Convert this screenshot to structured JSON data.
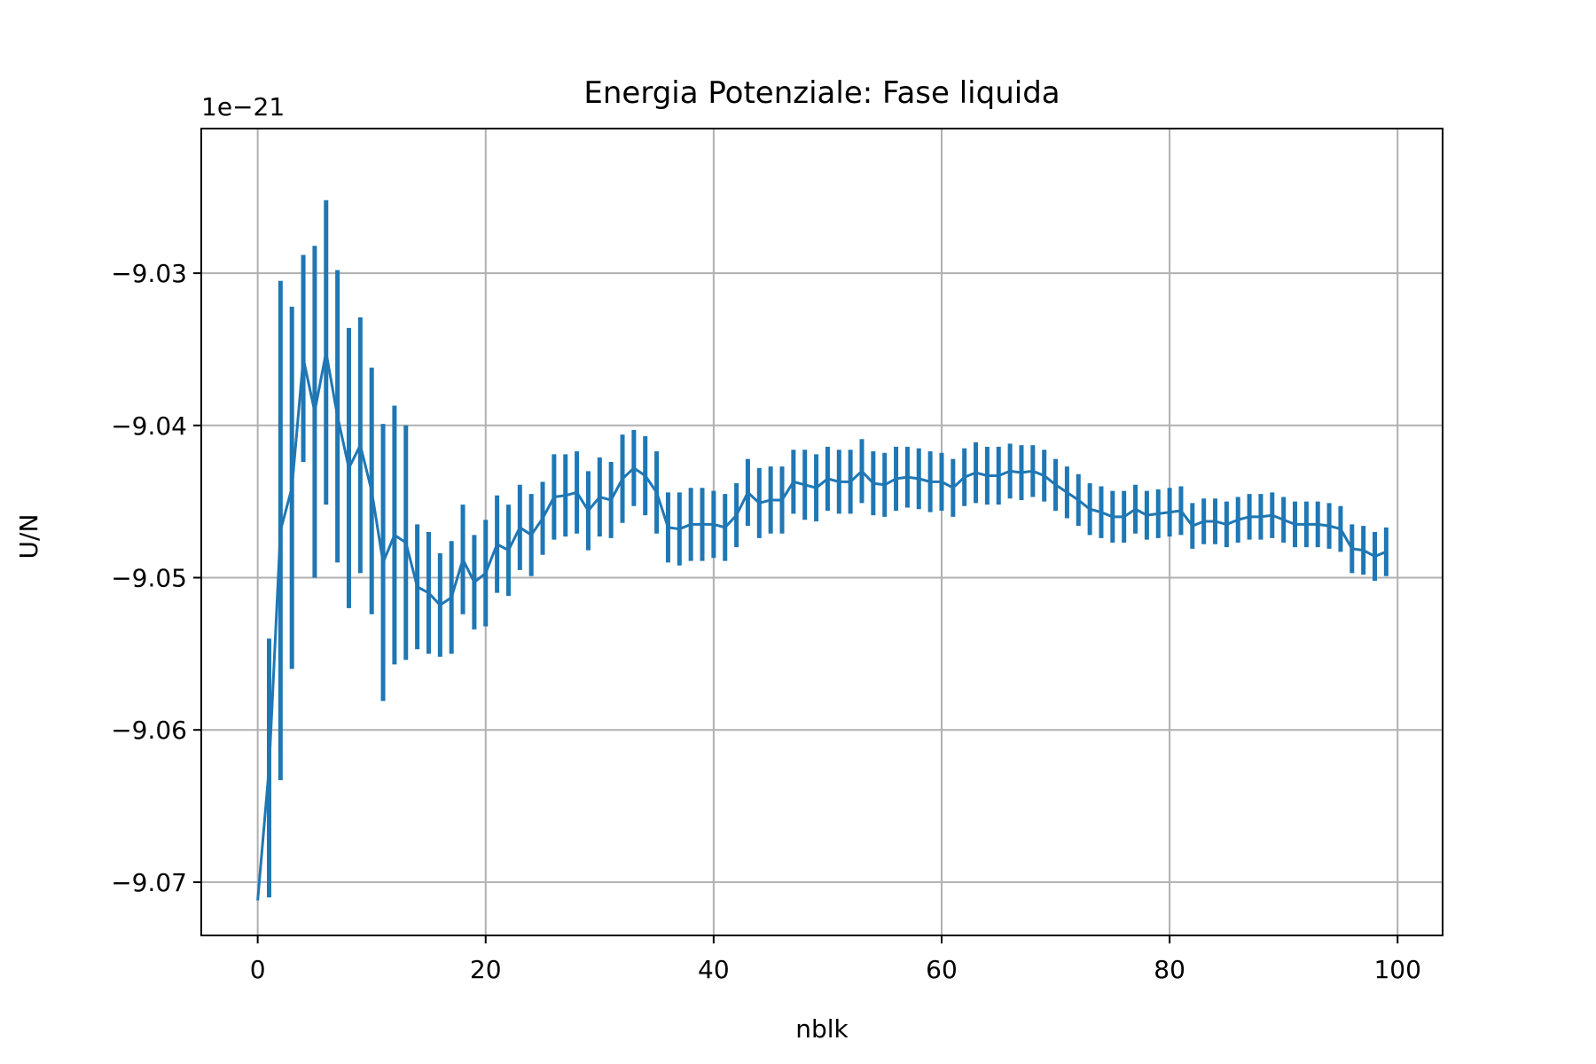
{
  "chart_data": {
    "type": "line",
    "title": "Energia Potenziale: Fase liquida",
    "xlabel": "nblk",
    "ylabel": "U/N",
    "y_offset_label": "1e−21",
    "xlim": [
      -4.95,
      103.95
    ],
    "ylim": [
      -9.0735,
      -9.0205
    ],
    "x_ticks": [
      0,
      20,
      40,
      60,
      80,
      100
    ],
    "x_tick_labels": [
      "0",
      "20",
      "40",
      "60",
      "80",
      "100"
    ],
    "y_ticks": [
      -9.07,
      -9.06,
      -9.05,
      -9.04,
      -9.03
    ],
    "y_tick_labels": [
      "−9.07",
      "−9.06",
      "−9.05",
      "−9.04",
      "−9.03"
    ],
    "grid": true,
    "color": "#1f77b4",
    "series": [
      {
        "x": [
          0,
          1,
          2,
          3,
          4,
          5,
          6,
          7,
          8,
          9,
          10,
          11,
          12,
          13,
          14,
          15,
          16,
          17,
          18,
          19,
          20,
          21,
          22,
          23,
          24,
          25,
          26,
          27,
          28,
          29,
          30,
          31,
          32,
          33,
          34,
          35,
          36,
          37,
          38,
          39,
          40,
          41,
          42,
          43,
          44,
          45,
          46,
          47,
          48,
          49,
          50,
          51,
          52,
          53,
          54,
          55,
          56,
          57,
          58,
          59,
          60,
          61,
          62,
          63,
          64,
          65,
          66,
          67,
          68,
          69,
          70,
          71,
          72,
          73,
          74,
          75,
          76,
          77,
          78,
          79,
          80,
          81,
          82,
          83,
          84,
          85,
          86,
          87,
          88,
          89,
          90,
          91,
          92,
          93,
          94,
          95,
          96,
          97,
          98,
          99
        ],
        "y": [
          -9.0712,
          -9.0625,
          -9.0469,
          -9.0441,
          -9.0356,
          -9.0391,
          -9.0352,
          -9.0394,
          -9.0428,
          -9.0413,
          -9.0443,
          -9.049,
          -9.0472,
          -9.0477,
          -9.0506,
          -9.051,
          -9.0518,
          -9.0513,
          -9.0488,
          -9.0503,
          -9.0497,
          -9.0478,
          -9.0482,
          -9.0467,
          -9.0472,
          -9.0461,
          -9.0447,
          -9.0446,
          -9.0444,
          -9.0456,
          -9.0447,
          -9.0449,
          -9.0435,
          -9.0428,
          -9.0433,
          -9.0444,
          -9.0467,
          -9.0468,
          -9.0465,
          -9.0465,
          -9.0465,
          -9.0467,
          -9.0459,
          -9.0444,
          -9.0451,
          -9.0449,
          -9.0449,
          -9.0437,
          -9.0439,
          -9.0441,
          -9.0435,
          -9.0437,
          -9.0437,
          -9.043,
          -9.0438,
          -9.0439,
          -9.0435,
          -9.0434,
          -9.0435,
          -9.0437,
          -9.0437,
          -9.0441,
          -9.0434,
          -9.0431,
          -9.0433,
          -9.0433,
          -9.043,
          -9.0431,
          -9.043,
          -9.0433,
          -9.0439,
          -9.0444,
          -9.0449,
          -9.0455,
          -9.0457,
          -9.046,
          -9.046,
          -9.0455,
          -9.0459,
          -9.0458,
          -9.0457,
          -9.0456,
          -9.0466,
          -9.0463,
          -9.0463,
          -9.0465,
          -9.0462,
          -9.046,
          -9.046,
          -9.0459,
          -9.0462,
          -9.0465,
          -9.0465,
          -9.0465,
          -9.0466,
          -9.0468,
          -9.0481,
          -9.0482,
          -9.0486,
          -9.0483
        ],
        "yerr": [
          0,
          0.0085,
          0.0164,
          0.0119,
          0.0068,
          0.0109,
          0.01,
          0.0096,
          0.0092,
          0.0084,
          0.0081,
          0.0091,
          0.0085,
          0.0077,
          0.0041,
          0.004,
          0.0034,
          0.0037,
          0.0036,
          0.0031,
          0.0035,
          0.0032,
          0.003,
          0.0028,
          0.0027,
          0.0024,
          0.0028,
          0.0027,
          0.0027,
          0.0026,
          0.0026,
          0.0025,
          0.0029,
          0.0025,
          0.0026,
          0.0027,
          0.0023,
          0.0024,
          0.0024,
          0.0024,
          0.0022,
          0.0022,
          0.0021,
          0.0022,
          0.0023,
          0.0022,
          0.0022,
          0.0021,
          0.0023,
          0.0022,
          0.0021,
          0.0021,
          0.0021,
          0.0021,
          0.0021,
          0.0021,
          0.0021,
          0.002,
          0.002,
          0.002,
          0.0019,
          0.0019,
          0.0019,
          0.002,
          0.0019,
          0.0019,
          0.0018,
          0.0018,
          0.0017,
          0.0017,
          0.0017,
          0.0017,
          0.0017,
          0.0017,
          0.0017,
          0.0017,
          0.0017,
          0.0016,
          0.0016,
          0.0016,
          0.0016,
          0.0016,
          0.0015,
          0.0015,
          0.0015,
          0.0015,
          0.0015,
          0.0015,
          0.0015,
          0.0015,
          0.0015,
          0.0015,
          0.0015,
          0.0015,
          0.0015,
          0.0015,
          0.0016,
          0.0016,
          0.0016,
          0.0016
        ]
      }
    ]
  }
}
